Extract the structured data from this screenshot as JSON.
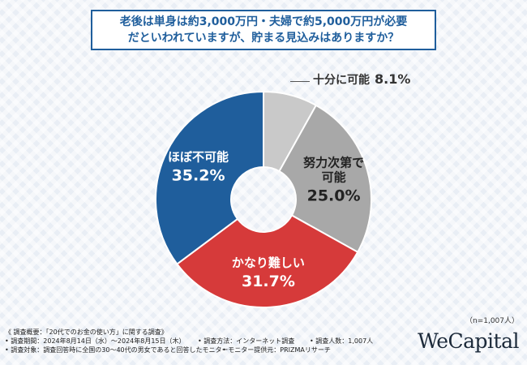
{
  "question": {
    "line1": "老後は単身は約3,000万円・夫婦で約5,000万円が必要",
    "line2": "だといわれていますが、貯まる見込みはありますか？"
  },
  "chart_data": {
    "type": "pie",
    "donut": true,
    "title": "老後は単身は約3,000万円・夫婦で約5,000万円が必要だといわれていますが、貯まる見込みはありますか？",
    "categories": [
      "十分に可能",
      "努力次第で可能",
      "かなり難しい",
      "ほぼ不可能"
    ],
    "display_labels": [
      [
        "十分に可能"
      ],
      [
        "努力次第で",
        "可能"
      ],
      [
        "かなり難しい"
      ],
      [
        "ほぼ不可能"
      ]
    ],
    "values": [
      8.1,
      25.0,
      31.7,
      35.2
    ],
    "value_labels": [
      "8.1%",
      "25.0%",
      "31.7%",
      "35.2%"
    ],
    "colors": [
      "#c9c9c9",
      "#a8a8a8",
      "#d63a3a",
      "#1f5e9c"
    ],
    "text_colors": [
      "#333333",
      "#222222",
      "#ffffff",
      "#ffffff"
    ]
  },
  "note": "（n=1,007人）",
  "footer": {
    "summary": "《 調査概要：「20代でのお金の使い方」に関する調査》",
    "period": "• 調査期間：2024年8月14日（水）～2024年8月15日（木）",
    "method": "• 調査方法：インターネット調査",
    "count": "• 調査人数：1,007人",
    "target": "• 調査対象：調査回答時に全国の30～40代の男女であると回答したモニター",
    "provider": "• モニター提供元：PRIZMAリサーチ"
  },
  "brand": "WeCapital"
}
